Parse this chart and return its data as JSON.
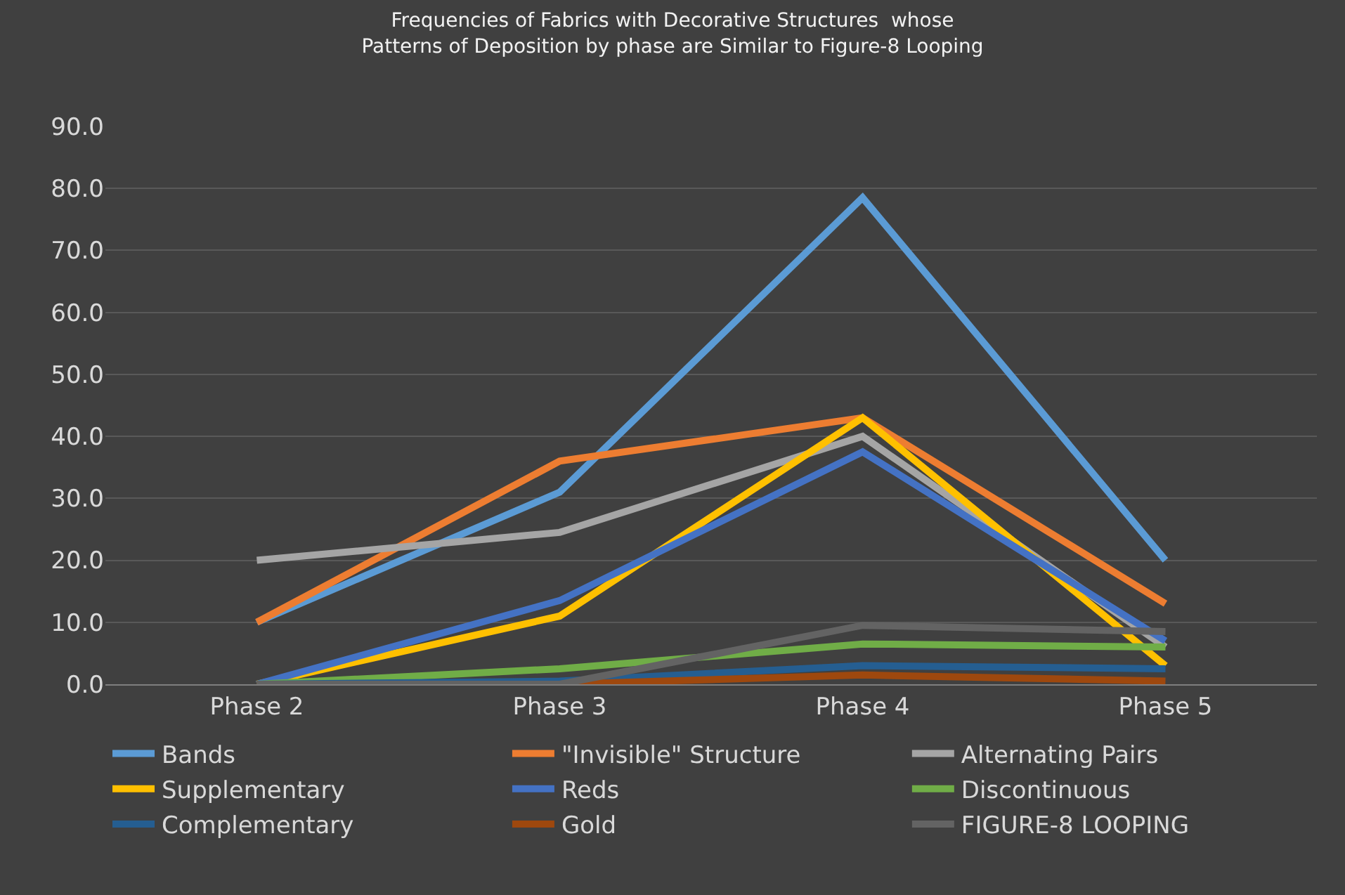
{
  "chart_data": {
    "type": "line",
    "title": "Frequencies of Fabrics with Decorative Structures  whose\nPatterns of Deposition by phase are Similar to Figure-8 Looping",
    "categories": [
      "Phase 2",
      "Phase 3",
      "Phase 4",
      "Phase 5"
    ],
    "series": [
      {
        "name": "Bands",
        "color": "#5b9bd5",
        "values": [
          10,
          31,
          78.5,
          20
        ]
      },
      {
        "name": "\"Invisible\" Structure",
        "color": "#ed7d31",
        "values": [
          10,
          36,
          43,
          13
        ]
      },
      {
        "name": "Alternating Pairs",
        "color": "#a5a5a5",
        "values": [
          20,
          24.5,
          40,
          6
        ]
      },
      {
        "name": "Supplementary",
        "color": "#ffc000",
        "values": [
          0,
          11,
          43,
          3
        ]
      },
      {
        "name": "Reds",
        "color": "#4472c4",
        "values": [
          0,
          13.5,
          37.5,
          7
        ]
      },
      {
        "name": "Discontinuous",
        "color": "#70ad47",
        "values": [
          0,
          2.5,
          6.5,
          6
        ]
      },
      {
        "name": "Complementary",
        "color": "#255e91",
        "values": [
          0,
          0.5,
          3,
          2.5
        ]
      },
      {
        "name": "Gold",
        "color": "#9e480e",
        "values": [
          0,
          0,
          1.5,
          0.5
        ]
      },
      {
        "name": "FIGURE-8 LOOPING",
        "color": "#636363",
        "values": [
          0,
          0,
          9.5,
          8.5
        ]
      }
    ],
    "ylim": [
      0,
      90
    ],
    "yticks": [
      {
        "value": 0,
        "label": "0.0"
      },
      {
        "value": 10,
        "label": "10.0"
      },
      {
        "value": 20,
        "label": "20.0"
      },
      {
        "value": 30,
        "label": "30.0"
      },
      {
        "value": 40,
        "label": "40.0"
      },
      {
        "value": 50,
        "label": "50.0"
      },
      {
        "value": 60,
        "label": "60.0"
      },
      {
        "value": 70,
        "label": "70.0"
      },
      {
        "value": 80,
        "label": "80.0"
      },
      {
        "value": 90,
        "label": "90.0"
      }
    ],
    "grid": "y",
    "legend": "bottom",
    "marker": "none",
    "line_style": "solid"
  }
}
